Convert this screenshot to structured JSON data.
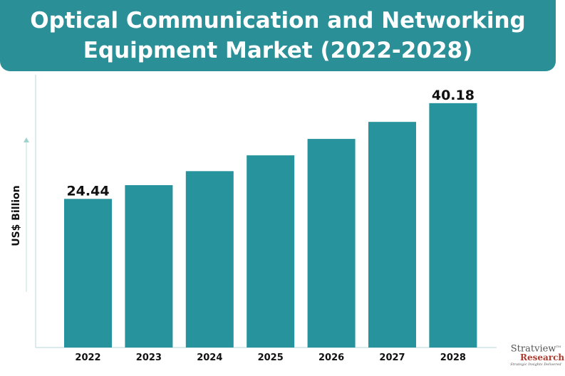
{
  "title_line1": "Optical Communication and Networking",
  "title_line2": "Equipment Market (2022-2028)",
  "colors": {
    "bar": "#27939c",
    "title_bg": "#2b8f97",
    "axis": "#cfe3e3"
  },
  "logo": {
    "name": "Stratview",
    "sub": "Research",
    "tagline": "Strategic Insights Delivered",
    "tm": "TM"
  },
  "chart_data": {
    "type": "bar",
    "title": "Optical Communication and Networking Equipment Market (2022-2028)",
    "ylabel": "US$ Billion",
    "xlabel": "",
    "categories": [
      "2022",
      "2023",
      "2024",
      "2025",
      "2026",
      "2027",
      "2028"
    ],
    "values": [
      24.44,
      26.7,
      29.0,
      31.6,
      34.3,
      37.1,
      40.18
    ],
    "data_labels": {
      "0": "24.44",
      "6": "40.18"
    },
    "ylim": [
      0,
      45
    ],
    "grid": false
  }
}
